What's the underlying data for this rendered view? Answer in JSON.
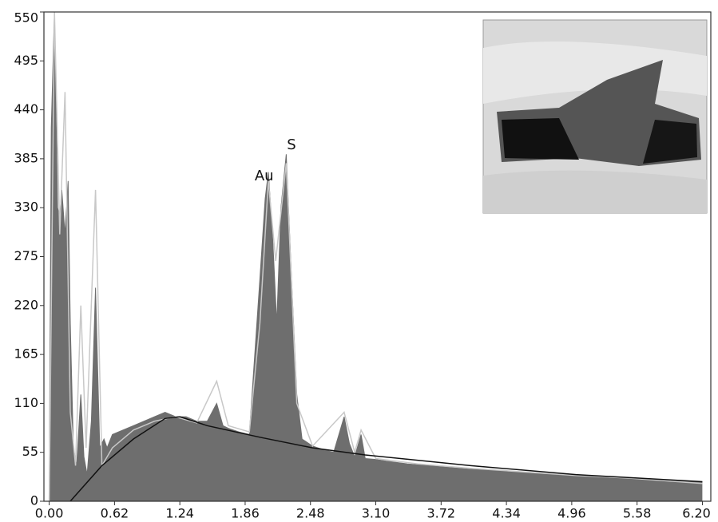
{
  "chart_data": {
    "type": "spectrum",
    "xlim": [
      -0.05,
      6.28
    ],
    "ylim": [
      0,
      550
    ],
    "xticks": [
      {
        "value": 0,
        "label": "0.00"
      },
      0.62,
      1.24,
      1.86,
      2.48,
      {
        "value": 3.1,
        "label": "3.10"
      },
      3.72,
      4.34,
      4.96,
      5.58,
      {
        "value": 6.2,
        "label": "6.20"
      }
    ],
    "yticks": [
      0,
      55,
      110,
      165,
      220,
      275,
      330,
      385,
      440,
      495,
      550
    ],
    "series": [
      {
        "style": "area",
        "color": "#6e6e6e",
        "x": [
          0,
          0.02,
          0.05,
          0.08,
          0.1,
          0.12,
          0.15,
          0.18,
          0.2,
          0.23,
          0.26,
          0.3,
          0.33,
          0.36,
          0.4,
          0.44,
          0.48,
          0.52,
          0.55,
          0.6,
          0.7,
          0.8,
          0.9,
          1.0,
          1.1,
          1.2,
          1.3,
          1.4,
          1.5,
          1.59,
          1.65,
          1.7,
          1.8,
          1.9,
          2.0,
          2.05,
          2.08,
          2.12,
          2.16,
          2.2,
          2.25,
          2.3,
          2.35,
          2.4,
          2.5,
          2.6,
          2.7,
          2.8,
          2.85,
          2.9,
          2.96,
          3.0,
          3.1,
          3.2,
          3.4,
          3.6,
          3.8,
          4.0,
          4.3,
          4.6,
          4.9,
          5.2,
          5.5,
          5.8,
          6.1,
          6.2
        ],
        "values": [
          0,
          420,
          550,
          330,
          320,
          350,
          300,
          360,
          200,
          60,
          40,
          120,
          50,
          30,
          90,
          240,
          60,
          70,
          60,
          75,
          80,
          85,
          90,
          95,
          100,
          95,
          95,
          90,
          90,
          110,
          85,
          82,
          78,
          75,
          250,
          340,
          370,
          300,
          200,
          330,
          390,
          250,
          120,
          70,
          62,
          58,
          55,
          95,
          65,
          50,
          75,
          48,
          47,
          45,
          42,
          40,
          38,
          36,
          34,
          32,
          30,
          28,
          26,
          24,
          22,
          22
        ]
      },
      {
        "style": "line",
        "color": "#c8c8c8",
        "x": [
          0,
          0.05,
          0.1,
          0.15,
          0.2,
          0.25,
          0.3,
          0.35,
          0.44,
          0.5,
          0.6,
          0.8,
          1.0,
          1.2,
          1.4,
          1.59,
          1.7,
          1.9,
          2.0,
          2.08,
          2.15,
          2.25,
          2.35,
          2.5,
          2.8,
          2.9,
          2.96,
          3.1,
          3.5,
          4.0,
          4.5,
          5.0,
          5.5,
          6.2
        ],
        "values": [
          0,
          550,
          300,
          460,
          100,
          40,
          220,
          60,
          350,
          40,
          60,
          80,
          90,
          95,
          88,
          135,
          85,
          78,
          200,
          360,
          270,
          380,
          110,
          62,
          100,
          55,
          80,
          48,
          42,
          37,
          33,
          29,
          26,
          20
        ]
      },
      {
        "style": "line",
        "color": "#111111",
        "x": [
          0.2,
          0.5,
          0.8,
          1.1,
          1.24,
          1.5,
          2.0,
          2.5,
          3.0,
          4.0,
          5.0,
          6.2
        ],
        "values": [
          0,
          40,
          70,
          93,
          95,
          85,
          72,
          60,
          52,
          40,
          30,
          22
        ]
      }
    ],
    "annotations": [
      {
        "text": "Au",
        "x": 2.04,
        "y": 365
      },
      {
        "text": "S",
        "x": 2.3,
        "y": 400
      }
    ]
  }
}
